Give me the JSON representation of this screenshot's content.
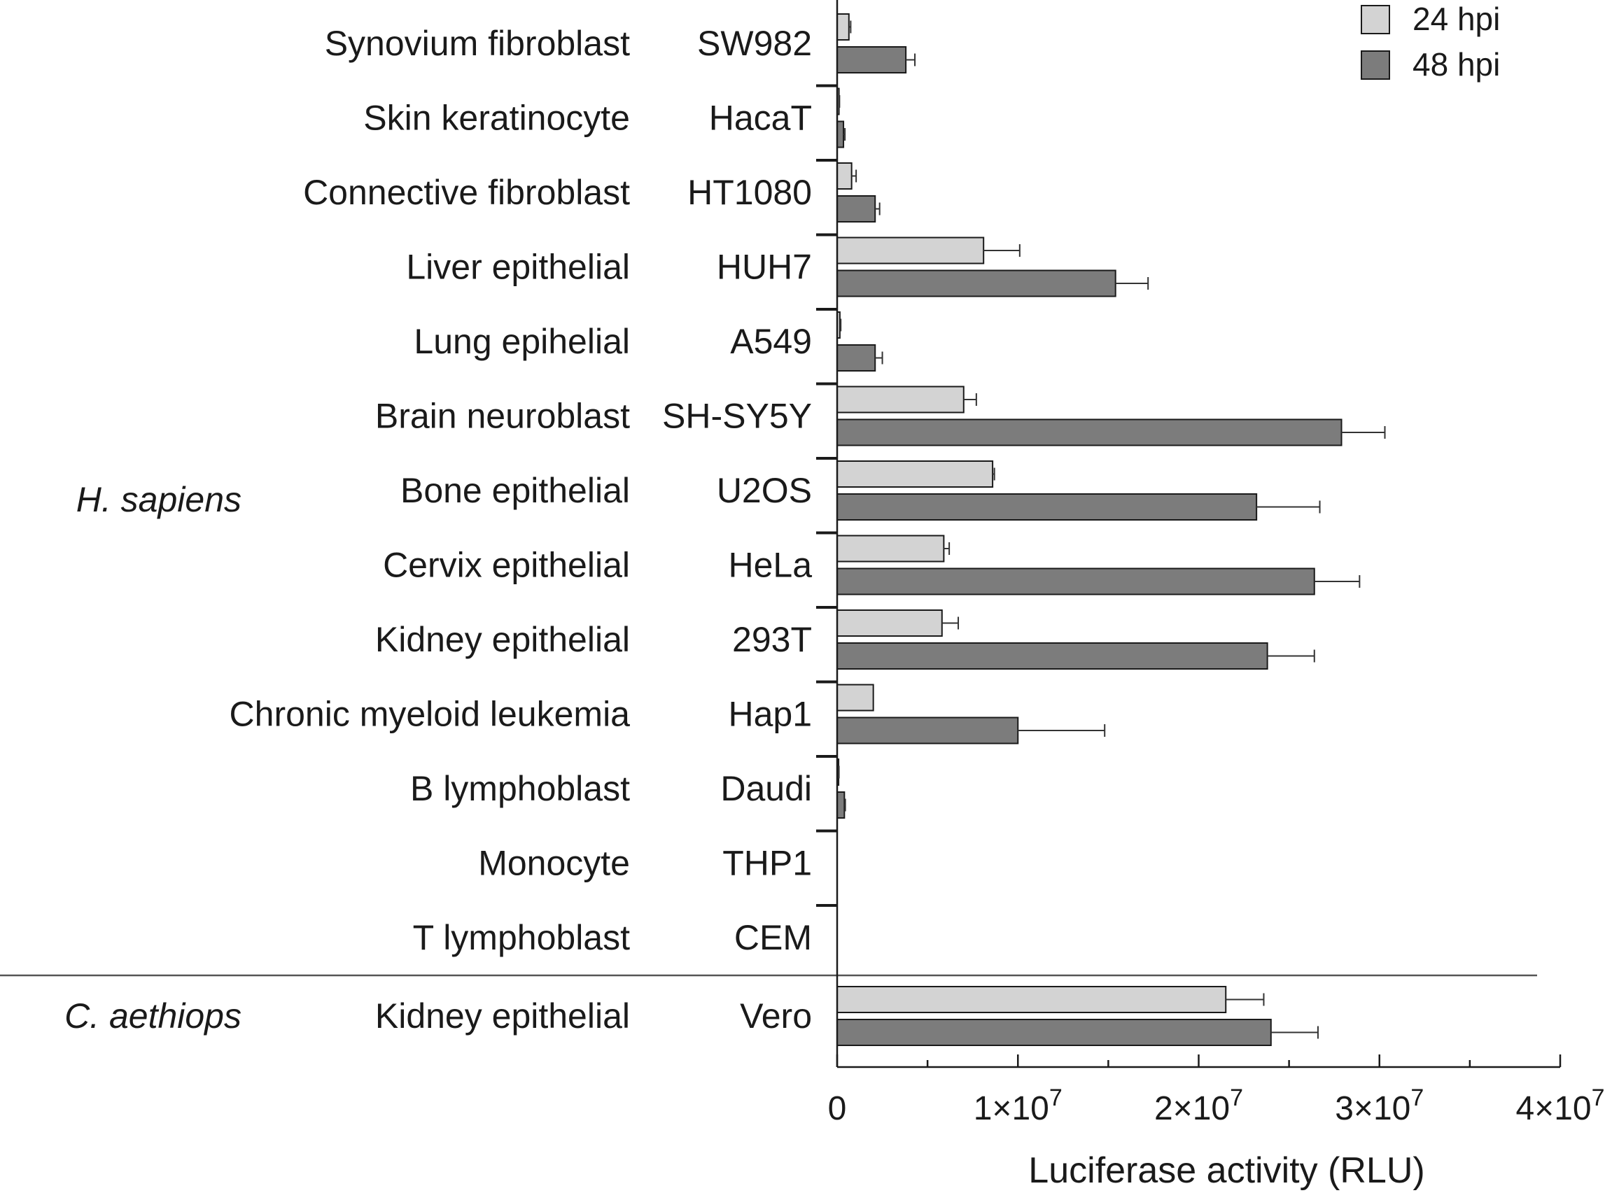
{
  "chart_data": {
    "type": "bar",
    "orientation": "horizontal",
    "xlabel": "Luciferase activity (RLU)",
    "xlim": [
      0,
      40000000
    ],
    "x_ticks": [
      {
        "value": 0,
        "mantissa": "0",
        "exponent": ""
      },
      {
        "value": 10000000,
        "mantissa": "1×10",
        "exponent": "7"
      },
      {
        "value": 20000000,
        "mantissa": "2×10",
        "exponent": "7"
      },
      {
        "value": 30000000,
        "mantissa": "3×10",
        "exponent": "7"
      },
      {
        "value": 40000000,
        "mantissa": "4×10",
        "exponent": "7"
      }
    ],
    "legend": {
      "position": "top-right",
      "entries": [
        {
          "name": "24 hpi",
          "color": "#d3d3d3"
        },
        {
          "name": "48 hpi",
          "color": "#7c7c7c"
        }
      ]
    },
    "species_groups": [
      {
        "name": "H. sapiens",
        "rows": [
          0,
          12
        ]
      },
      {
        "name": "C. aethiops",
        "rows": [
          13,
          13
        ]
      }
    ],
    "series_names": [
      "24 hpi",
      "48 hpi"
    ],
    "rows": [
      {
        "cell_type": "Synovium fibroblast",
        "cell_line": "SW982",
        "v24": 650000,
        "e24": 100000,
        "v48": 3800000,
        "e48": 500000
      },
      {
        "cell_type": "Skin keratinocyte",
        "cell_line": "HacaT",
        "v24": 100000,
        "e24": 30000,
        "v48": 350000,
        "e48": 80000
      },
      {
        "cell_type": "Connective fibroblast",
        "cell_line": "HT1080",
        "v24": 800000,
        "e24": 250000,
        "v48": 2100000,
        "e48": 250000
      },
      {
        "cell_type": "Liver epithelial",
        "cell_line": "HUH7",
        "v24": 8100000,
        "e24": 2000000,
        "v48": 15400000,
        "e48": 1800000
      },
      {
        "cell_type": "Lung epihelial",
        "cell_line": "A549",
        "v24": 150000,
        "e24": 50000,
        "v48": 2100000,
        "e48": 400000
      },
      {
        "cell_type": "Brain neuroblast",
        "cell_line": "SH-SY5Y",
        "v24": 7000000,
        "e24": 700000,
        "v48": 27900000,
        "e48": 2400000
      },
      {
        "cell_type": "Bone epithelial",
        "cell_line": "U2OS",
        "v24": 8600000,
        "e24": 100000,
        "v48": 23200000,
        "e48": 3500000
      },
      {
        "cell_type": "Cervix epithelial",
        "cell_line": "HeLa",
        "v24": 5900000,
        "e24": 300000,
        "v48": 26400000,
        "e48": 2500000
      },
      {
        "cell_type": "Kidney epithelial",
        "cell_line": "293T",
        "v24": 5800000,
        "e24": 900000,
        "v48": 23800000,
        "e48": 2600000
      },
      {
        "cell_type": "Chronic myeloid leukemia",
        "cell_line": "Hap1",
        "v24": 2000000,
        "e24": 0,
        "v48": 10000000,
        "e48": 4800000
      },
      {
        "cell_type": "B lymphoblast",
        "cell_line": "Daudi",
        "v24": 80000,
        "e24": 20000,
        "v48": 400000,
        "e48": 50000
      },
      {
        "cell_type": "Monocyte",
        "cell_line": "THP1",
        "v24": 0,
        "e24": 0,
        "v48": 0,
        "e48": 0
      },
      {
        "cell_type": "T lymphoblast",
        "cell_line": "CEM",
        "v24": 0,
        "e24": 0,
        "v48": 0,
        "e48": 0
      },
      {
        "cell_type": "Kidney epithelial",
        "cell_line": "Vero",
        "v24": 21500000,
        "e24": 2100000,
        "v48": 24000000,
        "e48": 2600000
      }
    ]
  }
}
